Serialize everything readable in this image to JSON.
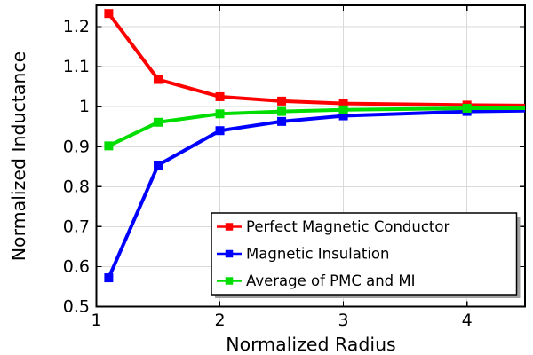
{
  "chart_data": {
    "type": "line",
    "title": "",
    "xlabel": "Normalized Radius",
    "ylabel": "Normalized Inductance",
    "x": [
      1.1,
      1.5,
      2.0,
      2.5,
      3.0,
      4.0,
      4.47
    ],
    "series": [
      {
        "name": "Perfect Magnetic Conductor",
        "color": "#ff0000",
        "marker": "square",
        "values": [
          1.233,
          1.068,
          1.025,
          1.014,
          1.008,
          1.004,
          1.003
        ]
      },
      {
        "name": "Magnetic Insulation",
        "color": "#0000ff",
        "marker": "square",
        "values": [
          0.572,
          0.854,
          0.94,
          0.963,
          0.977,
          0.988,
          0.99
        ]
      },
      {
        "name": "Average of PMC and MI",
        "color": "#00dd00",
        "marker": "square",
        "values": [
          0.902,
          0.961,
          0.982,
          0.988,
          0.992,
          0.996,
          0.996
        ]
      }
    ],
    "markers_at_x": [
      1.1,
      1.5,
      2.0,
      2.5,
      3.0,
      4.0
    ],
    "xlim": [
      1.0,
      4.47
    ],
    "ylim": [
      0.5,
      1.2534
    ],
    "xticks": [
      1,
      2,
      3,
      4
    ],
    "xtick_labels": [
      "1",
      "2",
      "3",
      "4"
    ],
    "yticks": [
      0.5,
      0.6,
      0.7,
      0.8,
      0.9,
      1.0,
      1.1,
      1.2
    ],
    "ytick_labels": [
      "0.5",
      "0.6",
      "0.7",
      "0.8",
      "0.9",
      "1",
      "1.1",
      "1.2"
    ],
    "grid": true,
    "legend": {
      "visible": true,
      "position": "bottom-right"
    },
    "colors": {
      "background": "#ffffff",
      "grid": "#d9d9d9",
      "frame": "#000000",
      "text": "#000000",
      "legend_background": "#ffffff",
      "legend_border": "#000000",
      "legend_shadow": "#a0a0a0"
    }
  }
}
